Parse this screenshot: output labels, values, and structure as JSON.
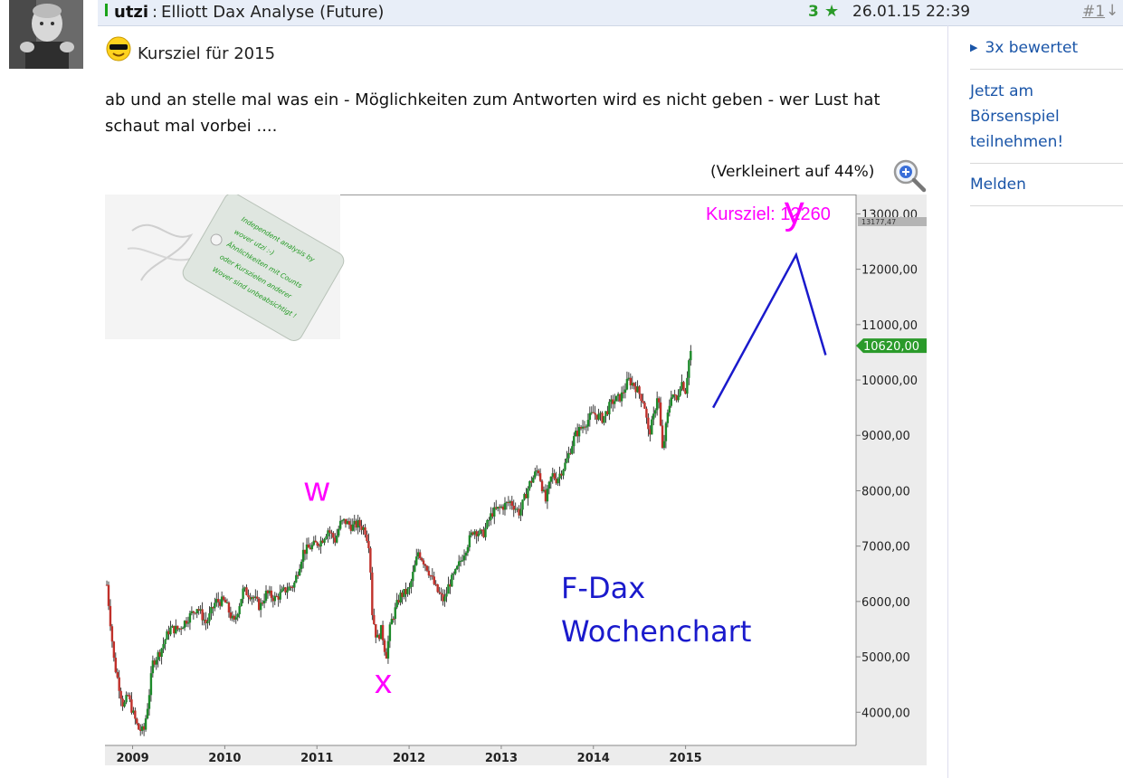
{
  "post": {
    "username": "utzi",
    "separator": ":",
    "title": "Elliott Dax Analyse (Future)",
    "rating": "3",
    "timestamp": "26.01.15 22:39",
    "number": "#1",
    "subject": "Kursziel für 2015",
    "body": "ab und an stelle mal was ein - Möglichkeiten zum Antworten wird es nicht geben - wer Lust hat schaut mal vorbei ....",
    "reduced_note": "(Verkleinert auf 44%)"
  },
  "sidebar": {
    "rated": "3x bewertet",
    "join_line1": "Jetzt am",
    "join_line2": "Börsenspiel",
    "join_line3": "teilnehmen!",
    "report": "Melden"
  },
  "icons": [
    "green-bar-marker",
    "star-icon",
    "arrow-down-icon",
    "smiley-icon",
    "zoom-icon",
    "triangle-right-icon"
  ],
  "colors": {
    "header_bg": "#e8eef8",
    "link": "#1a55a8",
    "wave_label": "#ff00ff",
    "projection": "#1a1acc",
    "price_tag": "#2a9a2a"
  },
  "chart_data": {
    "type": "line",
    "title": "F-Dax Wochenchart",
    "title_line1": "F-Dax",
    "title_line2": "Wochenchart",
    "annotation": "Kursziel: 12260",
    "tag_lines": [
      "Independent analysis by",
      "wover utzi :-)",
      "Ähnlichkeiten mit Counts",
      "oder Kurszielen anderer",
      "Wover sind unbeabsichtigt !"
    ],
    "x_ticks": [
      "2009",
      "2010",
      "2011",
      "2012",
      "2013",
      "2014",
      "2015"
    ],
    "y_ticks": [
      "4000,00",
      "5000,00",
      "6000,00",
      "7000,00",
      "8000,00",
      "9000,00",
      "10000,00",
      "11000,00",
      "12000,00",
      "13000,00"
    ],
    "y_tick_values": [
      4000,
      5000,
      6000,
      7000,
      8000,
      9000,
      10000,
      11000,
      12000,
      13000
    ],
    "ylim": [
      3400,
      13350
    ],
    "xlim": [
      2008.7,
      2016.85
    ],
    "top_label": "13177,47",
    "last_price": "10620,00",
    "last_value": 10620,
    "series": [
      {
        "x": [
          2008.72,
          2008.76,
          2008.8,
          2008.85,
          2008.9,
          2008.95,
          2009.0,
          2009.06,
          2009.12,
          2009.17,
          2009.22,
          2009.3,
          2009.4,
          2009.5,
          2009.6,
          2009.7,
          2009.8,
          2009.9,
          2010.0,
          2010.1,
          2010.2,
          2010.3,
          2010.38,
          2010.45,
          2010.55,
          2010.65,
          2010.75,
          2010.85,
          2010.95,
          2011.05,
          2011.12,
          2011.2,
          2011.25,
          2011.3,
          2011.38,
          2011.45,
          2011.52,
          2011.57,
          2011.6,
          2011.65,
          2011.7,
          2011.75,
          2011.8,
          2011.9,
          2012.0,
          2012.1,
          2012.2,
          2012.3,
          2012.38,
          2012.43,
          2012.5,
          2012.6,
          2012.7,
          2012.8,
          2012.9,
          2013.0,
          2013.1,
          2013.2,
          2013.3,
          2013.4,
          2013.48,
          2013.55,
          2013.6,
          2013.7,
          2013.8,
          2013.9,
          2014.0,
          2014.1,
          2014.2,
          2014.3,
          2014.38,
          2014.45,
          2014.55,
          2014.6,
          2014.65,
          2014.7,
          2014.75,
          2014.8,
          2014.85,
          2014.9,
          2014.95,
          2015.0,
          2015.03,
          2015.07
        ],
        "values": [
          6300,
          5600,
          4900,
          4500,
          4100,
          4300,
          4000,
          3700,
          3650,
          4200,
          4900,
          5100,
          5500,
          5500,
          5700,
          5900,
          5600,
          6000,
          6000,
          5600,
          6200,
          6100,
          5900,
          6150,
          6050,
          6200,
          6300,
          6900,
          7000,
          7100,
          7300,
          7100,
          7400,
          7450,
          7350,
          7400,
          7300,
          7000,
          5800,
          5300,
          5500,
          5000,
          5600,
          6100,
          6200,
          6900,
          6600,
          6200,
          6000,
          6300,
          6500,
          6900,
          7300,
          7200,
          7600,
          7700,
          7800,
          7600,
          8100,
          8400,
          7800,
          8300,
          8200,
          8500,
          9000,
          9200,
          9400,
          9300,
          9600,
          9700,
          10000,
          9900,
          9600,
          9000,
          9300,
          9800,
          8700,
          9300,
          9800,
          9600,
          10000,
          9800,
          10300,
          10620
        ]
      }
    ],
    "projection": {
      "x": [
        2015.3,
        2016.2,
        2016.52
      ],
      "values": [
        9500,
        12260,
        10450
      ]
    },
    "wave_labels": [
      {
        "text": "w",
        "x": 2011.0,
        "y": 7820
      },
      {
        "text": "x",
        "x": 2011.72,
        "y": 4350
      },
      {
        "text": "y",
        "x": 2016.18,
        "y": 12830
      }
    ]
  }
}
